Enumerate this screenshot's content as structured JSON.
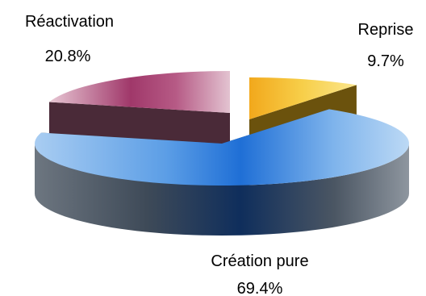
{
  "chart_data": {
    "type": "pie",
    "variant": "3d-exploded",
    "slices": [
      {
        "label": "Création  pure",
        "value": 69.4,
        "value_label": "69.4%",
        "color": "#1f6fd6"
      },
      {
        "label": "Réactivation",
        "value": 20.8,
        "value_label": "20.8%",
        "color": "#a0386a"
      },
      {
        "label": "Reprise",
        "value": 9.7,
        "value_label": "9.7%",
        "color": "#f5c42c"
      }
    ],
    "legend": "none"
  }
}
